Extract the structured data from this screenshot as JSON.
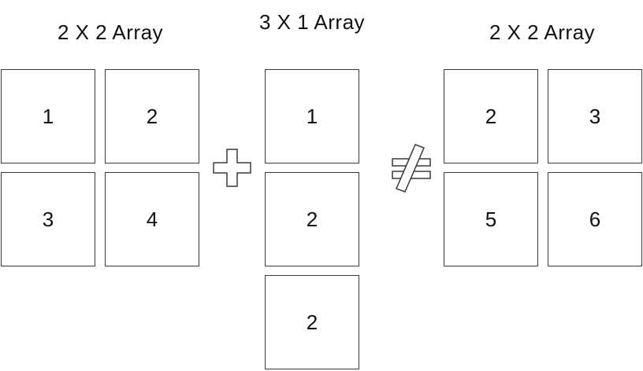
{
  "left_array": {
    "title": "2 X 2 Array",
    "cells": [
      "1",
      "2",
      "3",
      "4"
    ]
  },
  "middle_array": {
    "title": "3 X 1 Array",
    "cells": [
      "1",
      "2",
      "2"
    ]
  },
  "right_array": {
    "title": "2 X 2 Array",
    "cells": [
      "2",
      "3",
      "5",
      "6"
    ]
  },
  "operators": {
    "first": "plus-icon",
    "second": "not-equal-icon"
  }
}
